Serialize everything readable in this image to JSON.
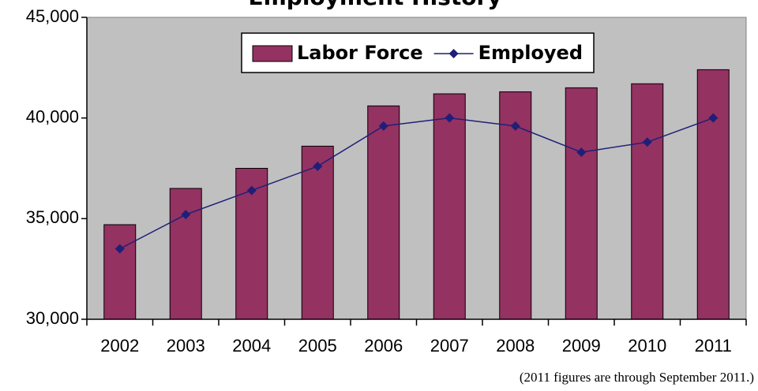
{
  "chart_data": {
    "type": "bar-line",
    "title": "Employment History",
    "footnote": "(2011 figures are through September 2011.)",
    "categories": [
      "2002",
      "2003",
      "2004",
      "2005",
      "2006",
      "2007",
      "2008",
      "2009",
      "2010",
      "2011"
    ],
    "series": [
      {
        "name": "Labor Force",
        "type": "bar",
        "color": "#943262",
        "values": [
          34700,
          36500,
          37500,
          38600,
          40600,
          41200,
          41300,
          41500,
          41700,
          42400
        ]
      },
      {
        "name": "Employed",
        "type": "line",
        "color": "#1f1f78",
        "values": [
          33500,
          35200,
          36400,
          37600,
          39600,
          40000,
          39600,
          38300,
          38800,
          40000
        ]
      }
    ],
    "ylim": [
      30000,
      45000
    ],
    "yticks": [
      {
        "value": 30000,
        "label": "30,000"
      },
      {
        "value": 35000,
        "label": "35,000"
      },
      {
        "value": 40000,
        "label": "40,000"
      },
      {
        "value": 45000,
        "label": "45,000"
      }
    ],
    "grid": false,
    "legend": "top",
    "plot_background": "#c0c0c0"
  }
}
